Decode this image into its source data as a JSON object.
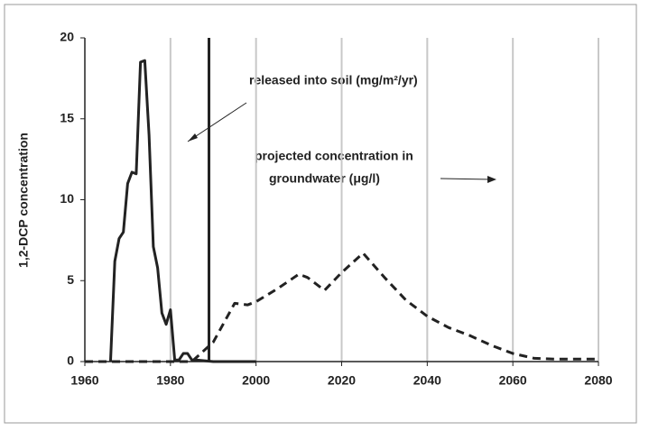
{
  "chart_data": {
    "type": "line",
    "ylabel": "1,2-DCP concentration",
    "xlim": [
      1960,
      2080
    ],
    "xticks": [
      1960,
      1980,
      2000,
      2020,
      2040,
      2060,
      2080
    ],
    "ylim": [
      0,
      20
    ],
    "yticks": [
      0,
      5,
      10,
      15,
      20
    ],
    "grid": "x",
    "marker_x": 1989,
    "annotations": [
      "released into soil (mg/m²/yr)",
      "projected concentration in",
      "groundwater (μg/l)"
    ],
    "series": [
      {
        "color": "#222222",
        "dash": false,
        "x": [
          1966,
          1967,
          1968,
          1969,
          1970,
          1971,
          1972,
          1973,
          1974,
          1975,
          1976,
          1977,
          1978,
          1979,
          1980,
          1981,
          1982,
          1983,
          1984,
          1985,
          1986,
          1990,
          2000
        ],
        "values": [
          0,
          6.2,
          7.6,
          8.0,
          11.0,
          11.7,
          11.6,
          18.5,
          18.6,
          14.0,
          7.1,
          5.8,
          3.0,
          2.3,
          3.2,
          0.1,
          0.1,
          0.5,
          0.5,
          0.1,
          0.1,
          0,
          0
        ]
      },
      {
        "color": "#222222",
        "dash": true,
        "x": [
          1960,
          1985,
          1990,
          1995,
          1998,
          2000,
          2005,
          2010,
          2012,
          2016,
          2020,
          2025,
          2030,
          2035,
          2040,
          2045,
          2050,
          2055,
          2060,
          2065,
          2070,
          2080
        ],
        "values": [
          0,
          0,
          1.2,
          3.6,
          3.5,
          3.7,
          4.5,
          5.4,
          5.2,
          4.4,
          5.5,
          6.7,
          5.2,
          3.8,
          2.8,
          2.1,
          1.6,
          1.0,
          0.5,
          0.2,
          0.15,
          0.15
        ]
      }
    ]
  }
}
